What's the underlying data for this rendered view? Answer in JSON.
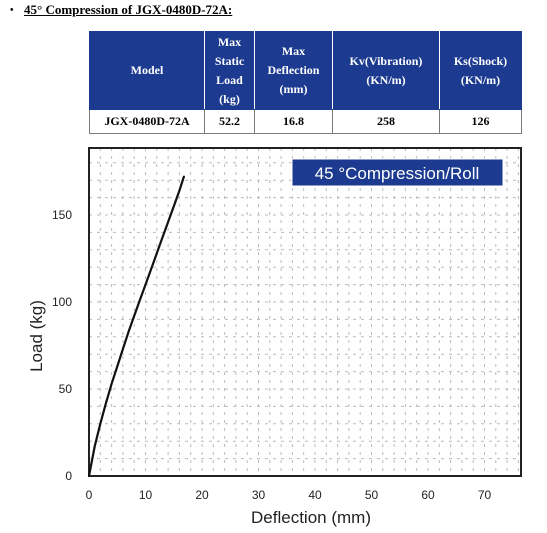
{
  "heading": {
    "bullet": "•",
    "text": "45° Compression of JGX-0480D-72A:"
  },
  "table": {
    "headers": [
      [
        "Model"
      ],
      [
        "Max",
        "Static",
        "Load",
        "(kg)"
      ],
      [
        "Max",
        "Deflection",
        "(mm)"
      ],
      [
        "Kv(Vibration)",
        "(KN/m)"
      ],
      [
        "Ks(Shock)",
        "(KN/m)"
      ]
    ],
    "row": [
      "JGX-0480D-72A",
      "52.2",
      "16.8",
      "258",
      "126"
    ]
  },
  "chart_data": {
    "type": "line",
    "title": "45 °Compression/Roll",
    "xlabel": "Deflection (mm)",
    "ylabel": "Load (kg)",
    "xlim": [
      0,
      75
    ],
    "ylim": [
      0,
      175
    ],
    "xticks": [
      0,
      10,
      20,
      30,
      40,
      50,
      60,
      70
    ],
    "yticks": [
      0,
      50,
      100,
      150
    ],
    "grid": true,
    "series": [
      {
        "x": [
          0,
          1,
          2,
          3,
          4,
          5,
          6,
          7,
          8,
          9,
          10,
          11,
          12,
          13,
          14,
          15,
          16,
          16.8
        ],
        "y": [
          0,
          17,
          30,
          42,
          53,
          63,
          73,
          83,
          92,
          101,
          110,
          119,
          128,
          137,
          146,
          155,
          164,
          172
        ]
      }
    ],
    "colors": {
      "line": "#111111",
      "title_bg": "#1c3a8f",
      "frame": "#222222",
      "grid": "#bbbbbb"
    }
  }
}
